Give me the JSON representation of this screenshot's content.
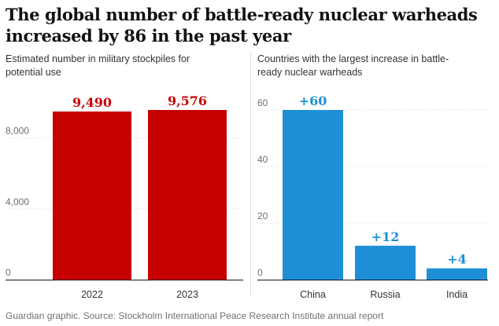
{
  "headline": "The global number of battle-ready nuclear warheads increased by 86 in the past year",
  "source": "Guardian graphic. Source: Stockholm International Peace Research Institute annual report",
  "chart_data": [
    {
      "type": "bar",
      "subtitle": "Estimated number in military stockpiles for potential use",
      "categories": [
        "2022",
        "2023"
      ],
      "values": [
        9490,
        9576
      ],
      "data_labels": [
        "9,490",
        "9,576"
      ],
      "ylim": [
        0,
        9576
      ],
      "yticks": [
        0,
        4000,
        8000
      ],
      "ytick_labels": [
        "0",
        "4,000",
        "8,000"
      ],
      "bar_color": "#c70000",
      "label_color": "#c70000",
      "grid": true
    },
    {
      "type": "bar",
      "subtitle": "Countries with the largest increase in battle-ready nuclear warheads",
      "categories": [
        "China",
        "Russia",
        "India"
      ],
      "values": [
        60,
        12,
        4
      ],
      "data_labels": [
        "+60",
        "+12",
        "+4"
      ],
      "ylim": [
        0,
        60
      ],
      "yticks": [
        0,
        20,
        40,
        60
      ],
      "ytick_labels": [
        "0",
        "20",
        "40",
        "60"
      ],
      "bar_color": "#1e8fd6",
      "label_color": "#1e8fd6",
      "grid": true
    }
  ]
}
